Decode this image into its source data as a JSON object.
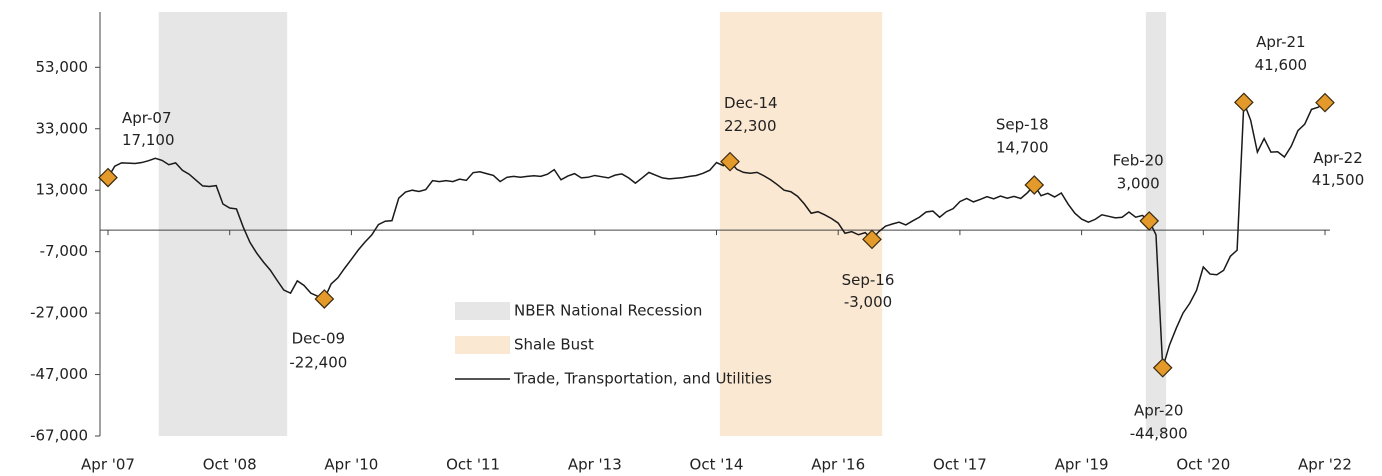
{
  "chart_data": {
    "type": "line",
    "categories": [
      "Apr '07",
      null,
      null,
      null,
      null,
      null,
      null,
      null,
      null,
      null,
      null,
      null,
      null,
      null,
      null,
      null,
      null,
      null,
      "Oct '08",
      null,
      null,
      null,
      null,
      null,
      null,
      null,
      null,
      null,
      null,
      null,
      null,
      null,
      null,
      null,
      null,
      null,
      "Apr '10",
      null,
      null,
      null,
      null,
      null,
      null,
      null,
      null,
      null,
      null,
      null,
      null,
      null,
      null,
      null,
      null,
      null,
      "Oct '11",
      null,
      null,
      null,
      null,
      null,
      null,
      null,
      null,
      null,
      null,
      null,
      null,
      null,
      null,
      null,
      null,
      null,
      "Apr '13",
      null,
      null,
      null,
      null,
      null,
      null,
      null,
      null,
      null,
      null,
      null,
      null,
      null,
      null,
      null,
      null,
      null,
      "Oct '14",
      null,
      null,
      null,
      null,
      null,
      null,
      null,
      null,
      null,
      null,
      null,
      null,
      null,
      null,
      null,
      null,
      null,
      "Apr '16",
      null,
      null,
      null,
      null,
      null,
      null,
      null,
      null,
      null,
      null,
      null,
      null,
      null,
      null,
      null,
      null,
      null,
      "Oct '17",
      null,
      null,
      null,
      null,
      null,
      null,
      null,
      null,
      null,
      null,
      null,
      null,
      null,
      null,
      null,
      null,
      null,
      "Apr '19",
      null,
      null,
      null,
      null,
      null,
      null,
      null,
      null,
      null,
      null,
      null,
      null,
      null,
      null,
      null,
      null,
      null,
      "Oct '20",
      null,
      null,
      null,
      null,
      null,
      null,
      null,
      null,
      null,
      null,
      null,
      null,
      null,
      null,
      null,
      null,
      null,
      "Apr '22"
    ],
    "series": [
      {
        "name": "Trade, Transportation, and Utilities",
        "color": "#1a1a1a",
        "values": [
          17100,
          20800,
          21900,
          21800,
          21700,
          22000,
          22600,
          23400,
          22700,
          21300,
          21900,
          19500,
          18200,
          16300,
          14400,
          14200,
          14500,
          8500,
          7200,
          6900,
          1000,
          -4000,
          -7500,
          -10400,
          -13000,
          -16300,
          -19500,
          -20500,
          -16500,
          -18000,
          -20500,
          -21500,
          -22400,
          -17500,
          -15500,
          -12400,
          -9500,
          -6500,
          -3900,
          -1600,
          1800,
          2900,
          3100,
          10400,
          12400,
          13000,
          12600,
          13200,
          16100,
          15800,
          16100,
          15800,
          16600,
          16200,
          18700,
          19000,
          18400,
          17800,
          15800,
          17200,
          17500,
          17200,
          17500,
          17700,
          17500,
          18200,
          19700,
          16400,
          17600,
          18400,
          17000,
          17200,
          17800,
          17400,
          17000,
          17900,
          18300,
          17000,
          15300,
          17000,
          18800,
          17900,
          17000,
          16700,
          16900,
          17100,
          17500,
          17800,
          18500,
          19500,
          22000,
          21000,
          22300,
          19800,
          18800,
          18500,
          18800,
          17700,
          16400,
          14800,
          13000,
          12500,
          11000,
          8500,
          5500,
          6000,
          5000,
          3800,
          2300,
          -1000,
          -500,
          -1500,
          -800,
          -3000,
          -500,
          1300,
          2000,
          2600,
          1700,
          3000,
          4200,
          5900,
          6200,
          4200,
          6000,
          7000,
          9300,
          10300,
          9200,
          10000,
          10900,
          10200,
          11100,
          10400,
          11000,
          10300,
          12200,
          14700,
          11200,
          12000,
          10800,
          12100,
          8500,
          5500,
          3600,
          2600,
          3500,
          5000,
          4500,
          4000,
          4200,
          5900,
          4200,
          4800,
          3000,
          -1500,
          -44800,
          -37400,
          -31900,
          -27000,
          -23800,
          -19600,
          -12000,
          -14300,
          -14500,
          -13100,
          -8500,
          -6500,
          41600,
          35800,
          25400,
          29800,
          25400,
          25500,
          23800,
          27300,
          32400,
          34500,
          39300,
          40000,
          41500
        ]
      }
    ],
    "regions": [
      {
        "name": "NBER National Recession",
        "color": "#e6e6e6",
        "spans": [
          [
            8,
            26
          ],
          [
            154,
            156
          ]
        ]
      },
      {
        "name": "Shale Bust",
        "color": "#fbe8d2",
        "spans": [
          [
            91,
            114
          ]
        ]
      }
    ],
    "annotations": [
      {
        "index": 0,
        "label": "Apr-07",
        "value": 17100,
        "value_label": "17,100"
      },
      {
        "index": 32,
        "label": "Dec-09",
        "value": -22400,
        "value_label": "-22,400"
      },
      {
        "index": 92,
        "label": "Dec-14",
        "value": 22300,
        "value_label": "22,300"
      },
      {
        "index": 113,
        "label": "Sep-16",
        "value": -3000,
        "value_label": "-3,000"
      },
      {
        "index": 137,
        "label": "Sep-18",
        "value": 14700,
        "value_label": "14,700"
      },
      {
        "index": 154,
        "label": "Feb-20",
        "value": 3000,
        "value_label": "3,000"
      },
      {
        "index": 156,
        "label": "Apr-20",
        "value": -44800,
        "value_label": "-44,800"
      },
      {
        "index": 168,
        "label": "Apr-21",
        "value": 41600,
        "value_label": "41,600"
      },
      {
        "index": 180,
        "label": "Apr-22",
        "value": 41500,
        "value_label": "41,500"
      }
    ],
    "marker_color": "#e39a2b",
    "ylim": [
      -67000,
      71000
    ],
    "yticks": [
      {
        "value": -67000,
        "label": "-67,000"
      },
      {
        "value": -47000,
        "label": "-47,000"
      },
      {
        "value": -27000,
        "label": "-27,000"
      },
      {
        "value": -7000,
        "label": "-7,000"
      },
      {
        "value": 13000,
        "label": "13,000"
      },
      {
        "value": 33000,
        "label": "33,000"
      },
      {
        "value": 53000,
        "label": "53,000"
      }
    ],
    "grid": false
  }
}
